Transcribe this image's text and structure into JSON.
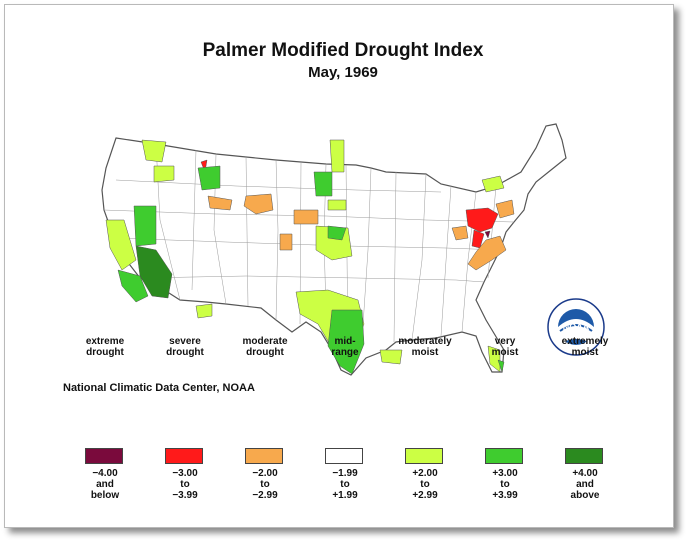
{
  "title": "Palmer Modified Drought Index",
  "subtitle": "May, 1969",
  "credit": "National Climatic Data Center, NOAA",
  "logo_text": "NOAA",
  "legend": [
    {
      "label_1": "extreme",
      "label_2": "drought",
      "range_1": "−4.00",
      "range_2": "and",
      "range_3": "below",
      "color": "#7a0a3c"
    },
    {
      "label_1": "severe",
      "label_2": "drought",
      "range_1": "−3.00",
      "range_2": "to",
      "range_3": "−3.99",
      "color": "#ff1a1a"
    },
    {
      "label_1": "moderate",
      "label_2": "drought",
      "range_1": "−2.00",
      "range_2": "to",
      "range_3": "−2.99",
      "color": "#f7a94d"
    },
    {
      "label_1": "mid-",
      "label_2": "range",
      "range_1": "−1.99",
      "range_2": "to",
      "range_3": "+1.99",
      "color": "#ffffff"
    },
    {
      "label_1": "moderately",
      "label_2": "moist",
      "range_1": "+2.00",
      "range_2": "to",
      "range_3": "+2.99",
      "color": "#ccff44"
    },
    {
      "label_1": "very",
      "label_2": "moist",
      "range_1": "+3.00",
      "range_2": "to",
      "range_3": "+3.99",
      "color": "#3fcc2f"
    },
    {
      "label_1": "extremely",
      "label_2": "moist",
      "range_1": "+4.00",
      "range_2": "and",
      "range_3": "above",
      "color": "#2b8a1f"
    }
  ],
  "colors": {
    "outline": "#666666",
    "background": "#ffffff"
  }
}
